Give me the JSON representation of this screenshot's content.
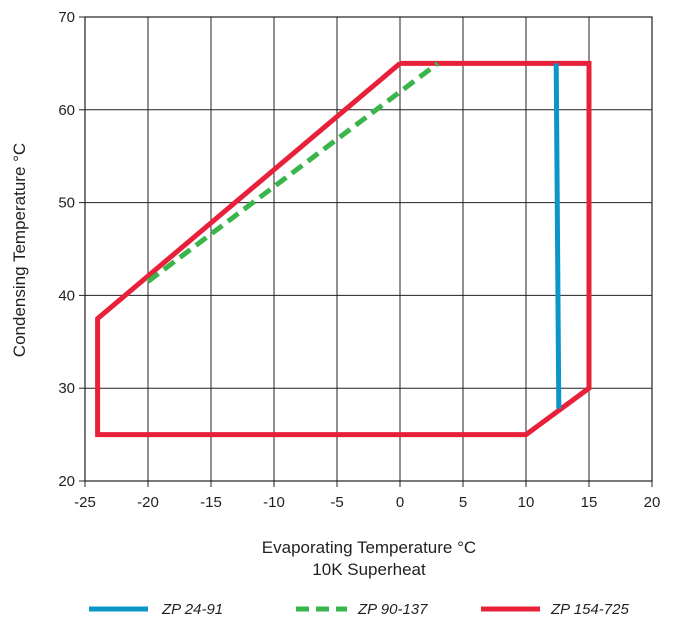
{
  "chart_data": {
    "type": "line",
    "xlabel": "Evaporating Temperature °C",
    "xlabel_sub": "10K Superheat",
    "ylabel": "Condensing Temperature °C",
    "xlim": [
      -25,
      20
    ],
    "ylim": [
      20,
      70
    ],
    "x_ticks": [
      -25,
      -20,
      -15,
      -10,
      -5,
      0,
      5,
      10,
      15,
      20
    ],
    "y_ticks": [
      20,
      30,
      40,
      50,
      60,
      70
    ],
    "x_tick_labels": [
      "-25",
      "-20",
      "-15",
      "-10",
      "-5",
      "0",
      "5",
      "10",
      "15",
      "20"
    ],
    "y_tick_labels": [
      "20",
      "30",
      "40",
      "50",
      "60",
      "70"
    ],
    "grid": true,
    "legend_position": "bottom",
    "series": [
      {
        "name": "ZP 24-91",
        "color": "#0a96c8",
        "style": "solid",
        "points": [
          [
            12.4,
            65
          ],
          [
            12.6,
            27.8
          ]
        ]
      },
      {
        "name": "ZP 90-137",
        "color": "#3ab54a",
        "style": "dashed",
        "points": [
          [
            -20,
            41.5
          ],
          [
            3,
            65
          ]
        ]
      },
      {
        "name": "ZP 154-725",
        "color": "#e8203a",
        "style": "solid",
        "points": [
          [
            0,
            65
          ],
          [
            15,
            65
          ],
          [
            15,
            30
          ],
          [
            10,
            25
          ],
          [
            -24,
            25
          ],
          [
            -24,
            37.5
          ],
          [
            0,
            65
          ]
        ]
      }
    ]
  }
}
